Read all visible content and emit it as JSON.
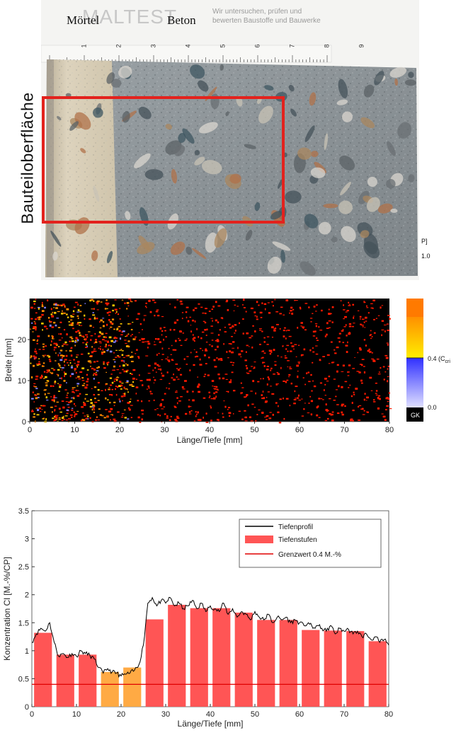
{
  "photo": {
    "label_mortar": "Mörtel",
    "label_concrete": "Beton",
    "side_label": "Bauteiloberfläche",
    "logo_text": "MALTEST",
    "slogan_line1": "Wir untersuchen, prüfen und",
    "slogan_line2": "bewerten Baustoffe und Bauwerke",
    "ruler_numbers": [
      "1",
      "2",
      "3",
      "4",
      "5",
      "6",
      "7",
      "8",
      "9"
    ],
    "colors": {
      "highlight_box": "#e3221d",
      "mortar": "#d9cfb8",
      "concrete": "#8e959a"
    }
  },
  "colorbar": {
    "unit_fragment": "P]",
    "top_value": "1.0",
    "mid_value": "0.4 (C",
    "mid_sub": "cri",
    "bottom_value": "0.0",
    "gk_label": "GK",
    "colors": [
      "#ff7a00",
      "#ffd200",
      "#ffff00",
      "#3d3dff",
      "#c9c9ff",
      "#000000"
    ]
  },
  "chart_data": [
    {
      "type": "heatmap",
      "xlabel": "Länge/Tiefe [mm]",
      "ylabel": "Breite [mm]",
      "xlim": [
        0,
        80
      ],
      "ylim": [
        0,
        30
      ],
      "xticks": [
        "0",
        "10",
        "20",
        "30",
        "40",
        "50",
        "60",
        "70",
        "80"
      ],
      "yticks": [
        "0",
        "10",
        "20"
      ],
      "background_color": "#000000",
      "mark_colors": [
        "#ff1a00",
        "#ff8c00",
        "#ffc800",
        "#8080ff"
      ]
    },
    {
      "type": "bar",
      "xlabel": "Länge/Tiefe [mm]",
      "ylabel": "Konzentration Cl [M.-%/CP]",
      "xlim": [
        0,
        80
      ],
      "ylim": [
        0,
        3.5
      ],
      "xticks": [
        "0",
        "10",
        "20",
        "30",
        "40",
        "50",
        "60",
        "70",
        "80"
      ],
      "yticks": [
        "0",
        "0.5",
        "1",
        "1.5",
        "2",
        "2.5",
        "3",
        "3.5"
      ],
      "legend": {
        "position": "top-right",
        "entries": [
          "Tiefenprofil",
          "Tiefenstufen",
          "Grenzwert 0.4 M.-%"
        ]
      },
      "bars": [
        {
          "x0": 0.5,
          "x1": 4.5,
          "value": 1.32,
          "color": "#ff5555"
        },
        {
          "x0": 5.5,
          "x1": 9.5,
          "value": 0.93,
          "color": "#ff5555"
        },
        {
          "x0": 10.5,
          "x1": 14.5,
          "value": 0.93,
          "color": "#ff5555"
        },
        {
          "x0": 15.5,
          "x1": 19.5,
          "value": 0.62,
          "color": "#ffaa44"
        },
        {
          "x0": 20.5,
          "x1": 24.5,
          "value": 0.7,
          "color": "#ffaa44"
        },
        {
          "x0": 25.5,
          "x1": 29.5,
          "value": 1.56,
          "color": "#ff5555"
        },
        {
          "x0": 30.5,
          "x1": 34.5,
          "value": 1.82,
          "color": "#ff5555"
        },
        {
          "x0": 35.5,
          "x1": 39.5,
          "value": 1.76,
          "color": "#ff5555"
        },
        {
          "x0": 40.5,
          "x1": 44.5,
          "value": 1.76,
          "color": "#ff5555"
        },
        {
          "x0": 45.5,
          "x1": 49.5,
          "value": 1.68,
          "color": "#ff5555"
        },
        {
          "x0": 50.5,
          "x1": 54.5,
          "value": 1.55,
          "color": "#ff5555"
        },
        {
          "x0": 55.5,
          "x1": 59.5,
          "value": 1.55,
          "color": "#ff5555"
        },
        {
          "x0": 60.5,
          "x1": 64.5,
          "value": 1.37,
          "color": "#ff5555"
        },
        {
          "x0": 65.5,
          "x1": 69.5,
          "value": 1.36,
          "color": "#ff5555"
        },
        {
          "x0": 70.5,
          "x1": 74.5,
          "value": 1.35,
          "color": "#ff5555"
        },
        {
          "x0": 75.5,
          "x1": 79.5,
          "value": 1.17,
          "color": "#ff5555"
        }
      ],
      "profile": {
        "x": [
          0,
          1,
          2,
          3,
          4,
          5,
          6,
          7,
          8,
          9,
          10,
          11,
          12,
          13,
          14,
          15,
          16,
          17,
          18,
          19,
          20,
          21,
          22,
          23,
          24,
          25,
          26,
          27,
          28,
          29,
          30,
          31,
          32,
          33,
          34,
          35,
          36,
          37,
          38,
          39,
          40,
          41,
          42,
          43,
          44,
          45,
          46,
          47,
          48,
          49,
          50,
          51,
          52,
          53,
          54,
          55,
          56,
          57,
          58,
          59,
          60,
          61,
          62,
          63,
          64,
          65,
          66,
          67,
          68,
          69,
          70,
          71,
          72,
          73,
          74,
          75,
          76,
          77,
          78,
          79,
          80
        ],
        "y": [
          1.15,
          1.3,
          1.4,
          1.35,
          1.5,
          1.15,
          0.9,
          0.95,
          0.88,
          0.95,
          0.9,
          1.0,
          0.95,
          0.92,
          0.85,
          0.7,
          0.6,
          0.68,
          0.62,
          0.6,
          0.55,
          0.58,
          0.6,
          0.65,
          0.75,
          1.1,
          1.85,
          1.95,
          1.8,
          1.9,
          1.85,
          1.95,
          1.8,
          1.85,
          1.75,
          1.8,
          1.9,
          1.75,
          1.85,
          1.7,
          1.8,
          1.75,
          1.7,
          1.85,
          1.65,
          1.75,
          1.6,
          1.7,
          1.65,
          1.55,
          1.7,
          1.6,
          1.55,
          1.65,
          1.5,
          1.6,
          1.55,
          1.6,
          1.5,
          1.55,
          1.5,
          1.45,
          1.5,
          1.4,
          1.45,
          1.4,
          1.35,
          1.45,
          1.3,
          1.4,
          1.35,
          1.38,
          1.3,
          1.35,
          1.25,
          1.3,
          1.2,
          1.25,
          1.15,
          1.2,
          1.1
        ],
        "color": "#000000"
      },
      "threshold": {
        "value": 0.4,
        "color": "#e00000"
      }
    }
  ]
}
